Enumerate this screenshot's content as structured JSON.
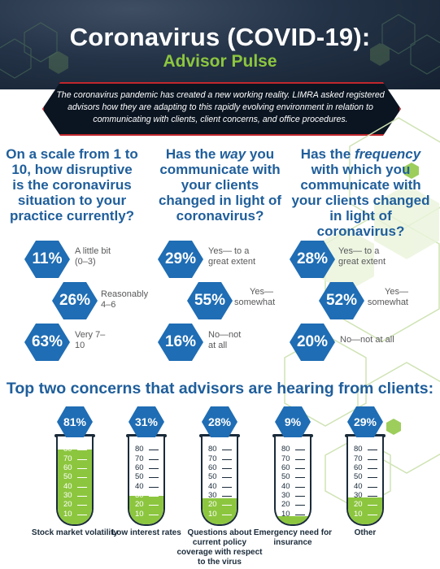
{
  "header": {
    "title": "Coronavirus (COVID-19):",
    "subtitle": "Advisor Pulse",
    "intro": "The coronavirus pandemic has created a new working reality. LIMRA asked registered advisors how they are adapting to this rapidly evolving environment in relation to communicating with clients, client concerns, and office procedures."
  },
  "questions": [
    {
      "text_parts": [
        "On a scale from 1 to 10, how disruptive is the coronavirus situation to your practice currently?"
      ],
      "answers": [
        {
          "pct": "11%",
          "label": "A little bit (0–3)"
        },
        {
          "pct": "26%",
          "label": "Reasonably 4–6"
        },
        {
          "pct": "63%",
          "label": "Very 7–10"
        }
      ]
    },
    {
      "pre": "Has the ",
      "em": "way",
      "post": " you communicate with your clients changed in light of coronavirus?",
      "answers": [
        {
          "pct": "29%",
          "label": "Yes— to a great extent"
        },
        {
          "pct": "55%",
          "label": "Yes— somewhat"
        },
        {
          "pct": "16%",
          "label": "No—not at all"
        }
      ]
    },
    {
      "pre": "Has the ",
      "em": "frequency",
      "post": " with which you communicate with your clients changed in light of coronavirus?",
      "answers": [
        {
          "pct": "28%",
          "label": "Yes— to a great extent"
        },
        {
          "pct": "52%",
          "label": "Yes— somewhat"
        },
        {
          "pct": "20%",
          "label": "No—not at all"
        }
      ]
    }
  ],
  "chart_data": {
    "type": "bar",
    "title": "Top two concerns that advisors are hearing from clients:",
    "categories": [
      "Stock market volatility",
      "Low interest rates",
      "Questions about current policy coverage with respect to the virus",
      "Emergency need for insurance",
      "Other"
    ],
    "values": [
      81,
      31,
      28,
      9,
      29
    ],
    "value_labels": [
      "81%",
      "31%",
      "28%",
      "9%",
      "29%"
    ],
    "ylim": [
      0,
      90
    ],
    "ticks": [
      10,
      20,
      30,
      40,
      50,
      60,
      70,
      80
    ]
  },
  "colors": {
    "accent_blue": "#1f6db4",
    "question_blue": "#1f5e9b",
    "green": "#8cc63f",
    "intro_border": "#c0272d"
  }
}
